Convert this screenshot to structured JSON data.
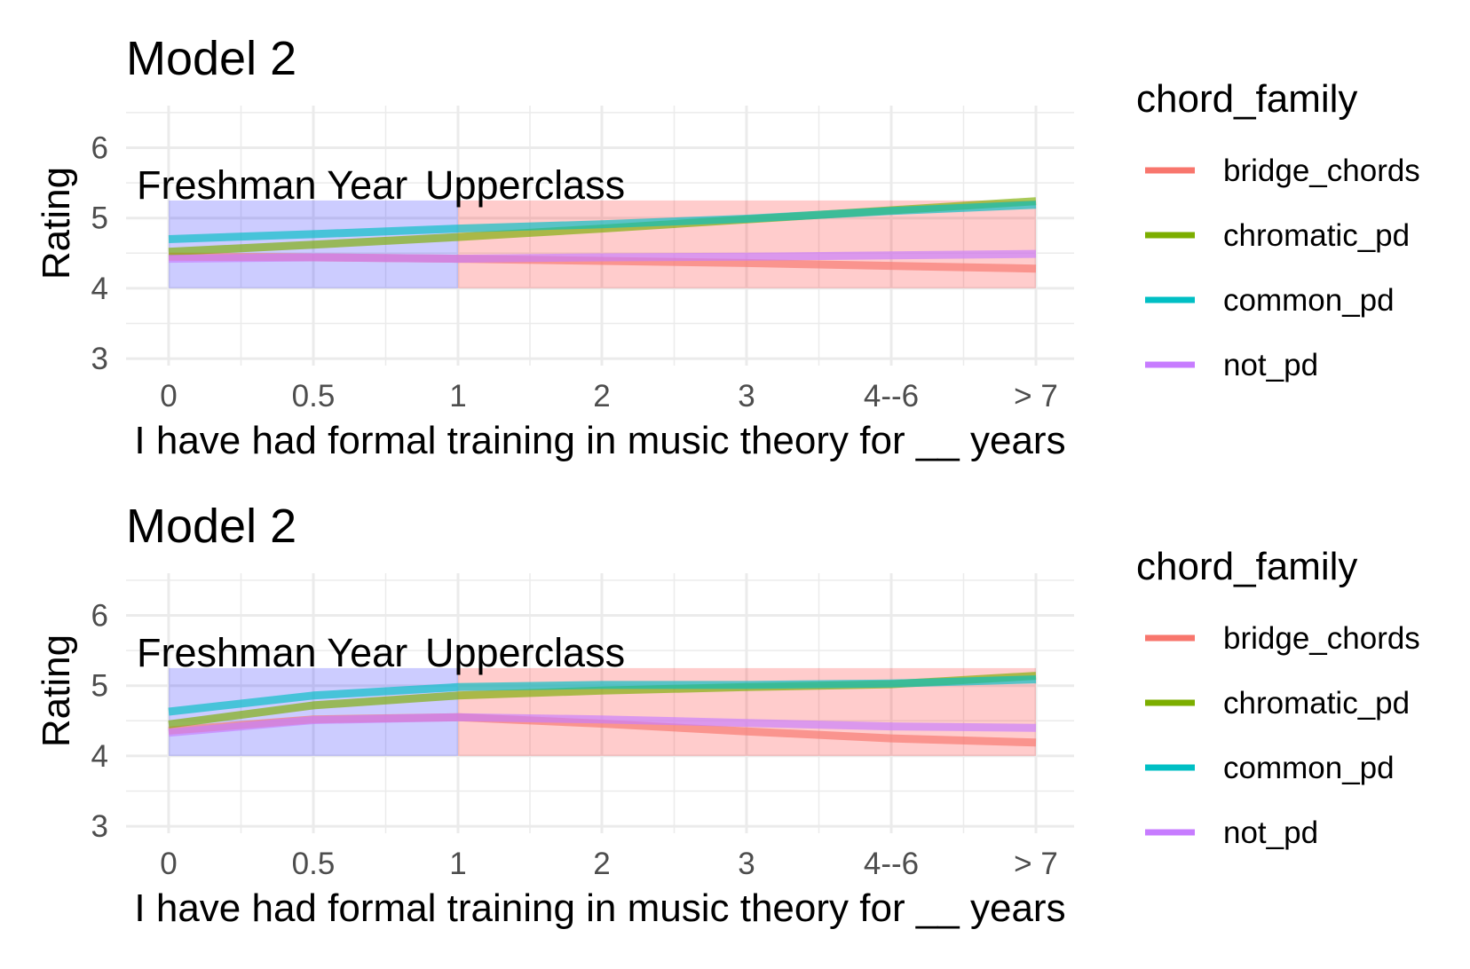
{
  "colors": {
    "bridge_chords": "#F8766D",
    "chromatic_pd": "#7CAE00",
    "common_pd": "#00BFC4",
    "not_pd": "#C77CFF",
    "freshman_band": "#0000FF",
    "upperclass_band": "#FF0000",
    "grid": "#ebebeb"
  },
  "chart_data": [
    {
      "type": "line",
      "title": "Model 2",
      "xlabel": "I have had formal training in music theory for __ years",
      "ylabel": "Rating",
      "categories": [
        "0",
        "0.5",
        "1",
        "2",
        "3",
        "4--6",
        "> 7"
      ],
      "yticks": [
        "3",
        "4",
        "5",
        "6"
      ],
      "ylim": [
        2.9,
        6.6
      ],
      "grid": true,
      "legend_position": "right",
      "legend_title": "chord_family",
      "series": [
        {
          "name": "bridge_chords",
          "values": [
            4.45,
            4.44,
            4.42,
            4.39,
            4.36,
            4.32,
            4.28
          ]
        },
        {
          "name": "chromatic_pd",
          "values": [
            4.52,
            4.62,
            4.73,
            4.85,
            4.98,
            5.11,
            5.24
          ]
        },
        {
          "name": "common_pd",
          "values": [
            4.7,
            4.77,
            4.85,
            4.91,
            4.99,
            5.1,
            5.19
          ]
        },
        {
          "name": "not_pd",
          "values": [
            4.42,
            4.44,
            4.42,
            4.44,
            4.45,
            4.47,
            4.49
          ]
        }
      ],
      "annotations": [
        {
          "label": "Freshman Year",
          "x_start": "0",
          "x_end": "1",
          "y_range": [
            4.0,
            5.25
          ]
        },
        {
          "label": "Upperclass",
          "x_start": "1",
          "x_end": "> 7",
          "y_range": [
            4.0,
            5.25
          ]
        }
      ]
    },
    {
      "type": "line",
      "title": "Model 2",
      "xlabel": "I have had formal training in music theory for __ years",
      "ylabel": "Rating",
      "categories": [
        "0",
        "0.5",
        "1",
        "2",
        "3",
        "4--6",
        "> 7"
      ],
      "yticks": [
        "3",
        "4",
        "5",
        "6"
      ],
      "ylim": [
        2.9,
        6.6
      ],
      "grid": true,
      "legend_position": "right",
      "legend_title": "chord_family",
      "series": [
        {
          "name": "bridge_chords",
          "values": [
            4.36,
            4.52,
            4.55,
            4.46,
            4.35,
            4.25,
            4.19
          ]
        },
        {
          "name": "chromatic_pd",
          "values": [
            4.45,
            4.72,
            4.86,
            4.93,
            4.98,
            5.02,
            5.14
          ]
        },
        {
          "name": "common_pd",
          "values": [
            4.63,
            4.86,
            4.98,
            5.01,
            5.01,
            5.03,
            5.09
          ]
        },
        {
          "name": "not_pd",
          "values": [
            4.33,
            4.51,
            4.55,
            4.52,
            4.47,
            4.42,
            4.4
          ]
        }
      ],
      "annotations": [
        {
          "label": "Freshman Year",
          "x_start": "0",
          "x_end": "1",
          "y_range": [
            4.0,
            5.25
          ]
        },
        {
          "label": "Upperclass",
          "x_start": "1",
          "x_end": "> 7",
          "y_range": [
            4.0,
            5.25
          ]
        }
      ]
    }
  ]
}
